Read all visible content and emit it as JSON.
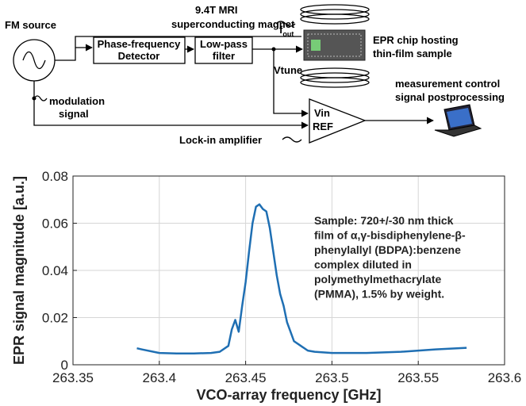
{
  "diagram": {
    "fm_source": "FM source",
    "magnet": [
      "9.4T MRI",
      "superconducting magnet"
    ],
    "pfd": [
      "Phase-frequency",
      "Detector"
    ],
    "lpf": [
      "Low-pass",
      "filter"
    ],
    "fout": {
      "main": "f",
      "sub": "out"
    },
    "vtune": "Vtune",
    "chip": [
      "EPR chip hosting",
      "thin-film sample"
    ],
    "measurement": [
      "measurement control",
      "signal postprocessing"
    ],
    "modulation": [
      "modulation",
      "signal"
    ],
    "vin": "Vin",
    "ref": "REF",
    "lockin": "Lock-in amplifier"
  },
  "chart_data": {
    "type": "line",
    "x_label": "VCO-array frequency [GHz]",
    "y_label": "EPR signal magnitude [a.u.]",
    "annotation": [
      "Sample: 720+/-30 nm thick",
      "film of α,γ-bisdiphenylene-β-",
      "phenylallyl (BDPA):benzene",
      "complex diluted in",
      "polymethylmethacrylate",
      "(PMMA), 1.5% by weight."
    ],
    "x": [
      263.387,
      263.39,
      263.4,
      263.41,
      263.42,
      263.43,
      263.435,
      263.44,
      263.442,
      263.444,
      263.446,
      263.448,
      263.45,
      263.452,
      263.454,
      263.456,
      263.458,
      263.46,
      263.462,
      263.464,
      263.466,
      263.468,
      263.47,
      263.472,
      263.474,
      263.476,
      263.478,
      263.482,
      263.486,
      263.49,
      263.5,
      263.52,
      263.54,
      263.56,
      263.578
    ],
    "values": [
      0.007,
      0.0065,
      0.005,
      0.0048,
      0.0048,
      0.005,
      0.0055,
      0.008,
      0.015,
      0.019,
      0.014,
      0.025,
      0.035,
      0.048,
      0.06,
      0.067,
      0.068,
      0.066,
      0.065,
      0.058,
      0.048,
      0.038,
      0.03,
      0.025,
      0.018,
      0.014,
      0.01,
      0.008,
      0.006,
      0.0055,
      0.005,
      0.005,
      0.0055,
      0.0065,
      0.0072
    ],
    "color": "#1f6fb3",
    "xlim": [
      263.35,
      263.6
    ],
    "xticks": [
      263.35,
      263.4,
      263.45,
      263.5,
      263.55,
      263.6
    ],
    "ylim": [
      0,
      0.08
    ],
    "yticks": [
      0,
      0.02,
      0.04,
      0.06,
      0.08
    ],
    "grid": true
  }
}
